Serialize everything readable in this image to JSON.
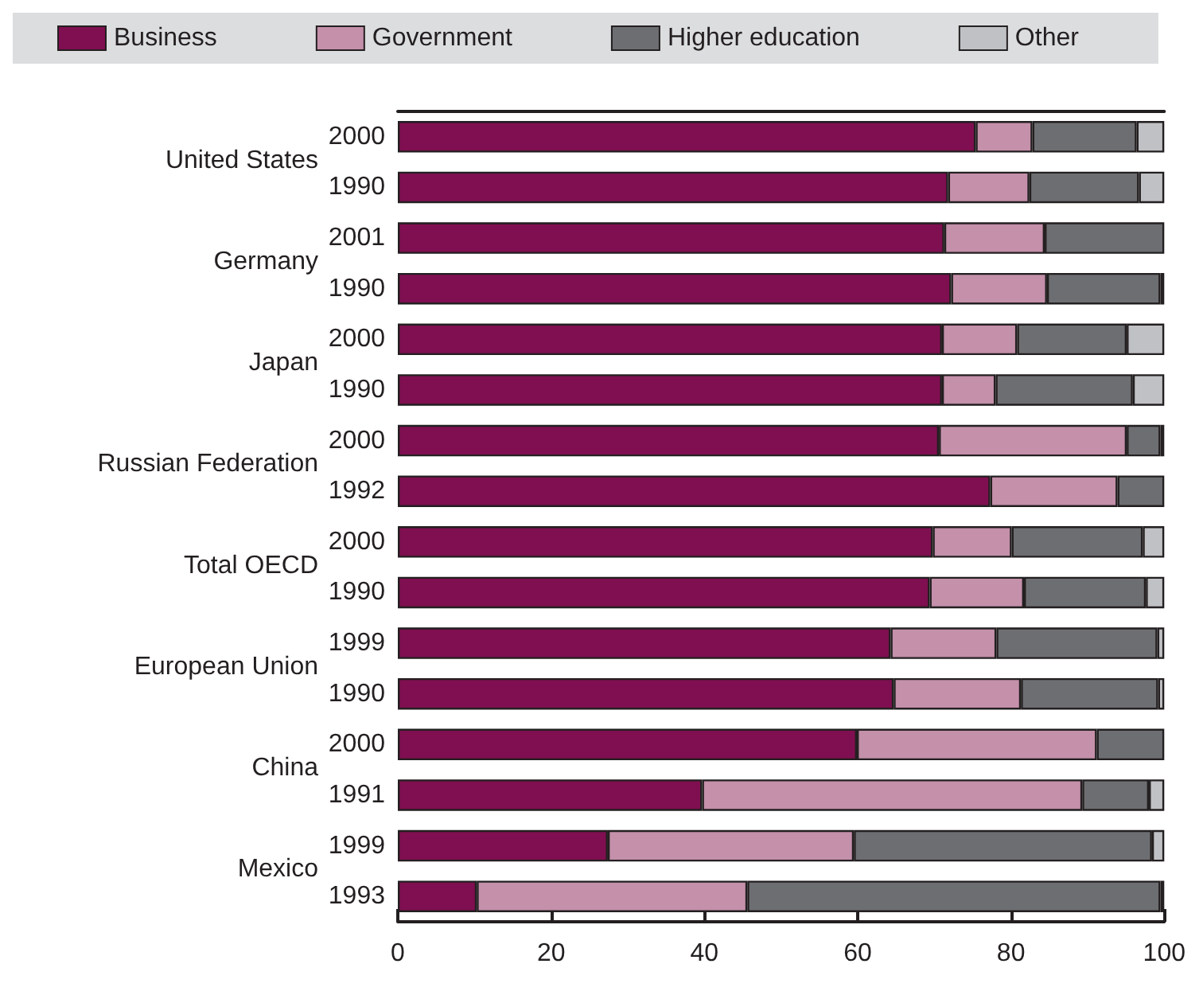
{
  "chart_data": {
    "type": "bar",
    "orientation": "horizontal",
    "stacked": true,
    "categories": [
      "2000",
      "1990",
      "2001",
      "1990",
      "2000",
      "1990",
      "2000",
      "1992",
      "2000",
      "1990",
      "1999",
      "1990",
      "2000",
      "1991",
      "1999",
      "1993"
    ],
    "series": [
      {
        "name": "Business",
        "color": "#7f0f50",
        "values": [
          75.4,
          71.8,
          71.3,
          72.2,
          71.0,
          71.0,
          70.6,
          77.3,
          69.8,
          69.4,
          64.3,
          64.7,
          59.9,
          39.7,
          27.4,
          10.3
        ]
      },
      {
        "name": "Government",
        "color": "#c490aa",
        "values": [
          7.4,
          10.6,
          13.1,
          12.5,
          9.8,
          7.0,
          24.5,
          16.6,
          10.3,
          12.3,
          13.8,
          16.6,
          31.3,
          49.6,
          32.1,
          35.3
        ]
      },
      {
        "name": "Higher education",
        "color": "#6d6e71",
        "values": [
          13.6,
          14.3,
          15.6,
          14.8,
          14.3,
          17.9,
          4.4,
          6.1,
          17.1,
          15.9,
          21.0,
          17.9,
          8.8,
          8.7,
          38.9,
          53.9
        ]
      },
      {
        "name": "Other",
        "color": "#c0c1c4",
        "values": [
          3.6,
          3.3,
          null,
          0.5,
          4.9,
          4.1,
          0.5,
          null,
          2.8,
          2.4,
          0.9,
          0.8,
          null,
          2.0,
          1.6,
          0.5
        ]
      }
    ],
    "annotations": [
      "United States",
      "Germany",
      "Japan",
      "Russian Federation",
      "Total OECD",
      "European Union",
      "China",
      "Mexico"
    ],
    "xlim": [
      0,
      100
    ],
    "xticks": [
      0,
      20,
      40,
      60,
      80,
      100
    ],
    "grid": false,
    "legend": "top"
  }
}
